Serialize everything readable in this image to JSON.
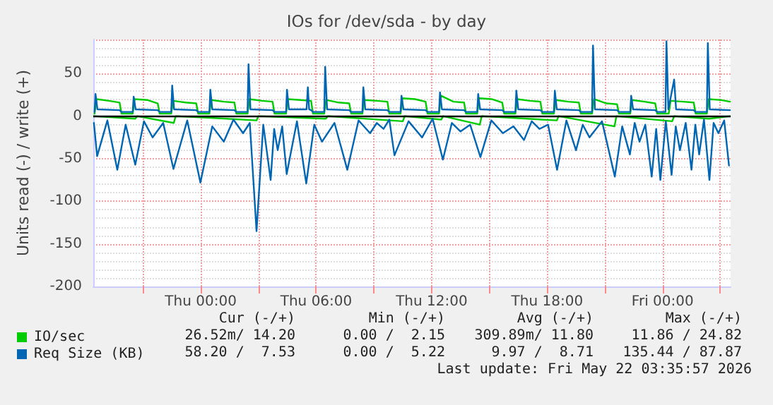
{
  "chart_data": {
    "type": "line",
    "title": "IOs for /dev/sda - by day",
    "ylabel": "Units read (-) / write (+)",
    "xlim": [
      "2026-05-20T18:25",
      "2026-05-22T03:32"
    ],
    "xticks": [
      {
        "value": "2026-05-20T21:00",
        "label": null
      },
      {
        "value": "2026-05-21T00:00",
        "label": "Thu 00:00"
      },
      {
        "value": "2026-05-21T03:00",
        "label": null
      },
      {
        "value": "2026-05-21T06:00",
        "label": "Thu 06:00"
      },
      {
        "value": "2026-05-21T09:00",
        "label": null
      },
      {
        "value": "2026-05-21T12:00",
        "label": "Thu 12:00"
      },
      {
        "value": "2026-05-21T15:00",
        "label": null
      },
      {
        "value": "2026-05-21T18:00",
        "label": "Thu 18:00"
      },
      {
        "value": "2026-05-21T21:00",
        "label": null
      },
      {
        "value": "2026-05-22T00:00",
        "label": "Fri 00:00"
      },
      {
        "value": "2026-05-22T03:00",
        "label": null
      }
    ],
    "ylim": [
      -200,
      90
    ],
    "yticks": [
      -200,
      -150,
      -100,
      -50,
      0,
      50
    ],
    "grid": true,
    "legend": "bottom left",
    "marker": "none",
    "line_style": "solid",
    "ref_lines": [
      {
        "axis": "y",
        "value": 0,
        "color": "#000000"
      }
    ],
    "series": [
      {
        "name": "IO/sec",
        "color": "#00cc00",
        "x": [
          "2026-05-20T18:29",
          "2026-05-20T18:35",
          "2026-05-20T19:14",
          "2026-05-20T19:47",
          "2026-05-20T19:53",
          "2026-05-20T20:28",
          "2026-05-20T20:34",
          "2026-05-20T21:13",
          "2026-05-20T21:46",
          "2026-05-20T21:52",
          "2026-05-20T22:28",
          "2026-05-20T22:34",
          "2026-05-20T23:13",
          "2026-05-20T23:46",
          "2026-05-20T23:52",
          "2026-05-21T00:27",
          "2026-05-21T00:33",
          "2026-05-21T01:12",
          "2026-05-21T01:45",
          "2026-05-21T01:51",
          "2026-05-21T02:26",
          "2026-05-21T02:32",
          "2026-05-21T03:11",
          "2026-05-21T03:44",
          "2026-05-21T03:50",
          "2026-05-21T04:26",
          "2026-05-21T04:32",
          "2026-05-21T05:11",
          "2026-05-21T05:44",
          "2026-05-21T05:50",
          "2026-05-21T06:25",
          "2026-05-21T06:31",
          "2026-05-21T07:10",
          "2026-05-21T07:43",
          "2026-05-21T07:49",
          "2026-05-21T08:24",
          "2026-05-21T08:30",
          "2026-05-21T09:09",
          "2026-05-21T09:42",
          "2026-05-21T09:48",
          "2026-05-21T10:23",
          "2026-05-21T10:29",
          "2026-05-21T11:08",
          "2026-05-21T11:41",
          "2026-05-21T11:47",
          "2026-05-21T12:23",
          "2026-05-21T12:29",
          "2026-05-21T13:08",
          "2026-05-21T13:41",
          "2026-05-21T13:47",
          "2026-05-21T14:22",
          "2026-05-21T14:28",
          "2026-05-21T15:07",
          "2026-05-21T15:40",
          "2026-05-21T15:46",
          "2026-05-21T16:21",
          "2026-05-21T16:27",
          "2026-05-21T17:06",
          "2026-05-21T17:39",
          "2026-05-21T17:45",
          "2026-05-21T18:21",
          "2026-05-21T18:27",
          "2026-05-21T19:06",
          "2026-05-21T19:39",
          "2026-05-21T19:45",
          "2026-05-21T20:20",
          "2026-05-21T20:26",
          "2026-05-21T21:05",
          "2026-05-21T21:38",
          "2026-05-21T21:44",
          "2026-05-21T22:19",
          "2026-05-21T22:25",
          "2026-05-21T23:04",
          "2026-05-21T23:37",
          "2026-05-21T23:43",
          "2026-05-22T00:19",
          "2026-05-22T00:25",
          "2026-05-22T01:04",
          "2026-05-22T01:37",
          "2026-05-22T01:43",
          "2026-05-22T02:18",
          "2026-05-22T02:24",
          "2026-05-22T03:00",
          "2026-05-22T03:30"
        ],
        "values": [
          3,
          20,
          18,
          16,
          3,
          3,
          20,
          19,
          15,
          3,
          3,
          18,
          16,
          15,
          3,
          3,
          19,
          17,
          16,
          3,
          3,
          20,
          18,
          17,
          3,
          3,
          20,
          19,
          18,
          3,
          3,
          19,
          16,
          15,
          3,
          3,
          19,
          18,
          17,
          3,
          3,
          21,
          20,
          17,
          3,
          3,
          24,
          17,
          16,
          3,
          3,
          21,
          20,
          16,
          3,
          3,
          20,
          18,
          17,
          3,
          3,
          19,
          17,
          16,
          3,
          3,
          20,
          15,
          14,
          3,
          3,
          19,
          17,
          15,
          3,
          3,
          18,
          17,
          16,
          3,
          3,
          20,
          19,
          17
        ]
      },
      {
        "color": "#00cc00",
        "x": [
          "2026-05-20T18:27",
          "2026-05-20T20:36",
          "2026-05-20T20:42",
          "2026-05-20T22:36",
          "2026-05-20T22:42",
          "2026-05-21T00:30",
          "2026-05-21T02:54",
          "2026-05-21T03:00",
          "2026-05-21T06:30",
          "2026-05-21T06:36",
          "2026-05-21T10:30",
          "2026-05-21T10:36",
          "2026-05-21T12:30",
          "2026-05-21T12:36",
          "2026-05-21T14:30",
          "2026-05-21T14:36",
          "2026-05-21T18:30",
          "2026-05-21T18:36",
          "2026-05-21T21:30",
          "2026-05-21T21:36",
          "2026-05-22T00:30",
          "2026-05-22T00:36",
          "2026-05-22T02:24",
          "2026-05-22T03:30"
        ],
        "values": [
          0,
          -3,
          0,
          -8,
          0,
          -2,
          -5,
          0,
          -3,
          0,
          -6,
          0,
          -4,
          0,
          -10,
          0,
          -5,
          0,
          -12,
          0,
          -6,
          0,
          -3,
          0
        ]
      },
      {
        "name": "Req Size (KB)",
        "color": "#0066b3",
        "x": [
          "2026-05-20T18:29",
          "2026-05-20T18:32",
          "2026-05-20T18:38",
          "2026-05-20T19:47",
          "2026-05-20T19:53",
          "2026-05-20T20:28",
          "2026-05-20T20:31",
          "2026-05-20T20:37",
          "2026-05-20T21:46",
          "2026-05-20T21:52",
          "2026-05-20T22:28",
          "2026-05-20T22:31",
          "2026-05-20T22:37",
          "2026-05-20T23:46",
          "2026-05-20T23:52",
          "2026-05-21T00:27",
          "2026-05-21T00:30",
          "2026-05-21T00:36",
          "2026-05-21T01:45",
          "2026-05-21T01:51",
          "2026-05-21T02:26",
          "2026-05-21T02:29",
          "2026-05-21T02:35",
          "2026-05-21T03:44",
          "2026-05-21T03:50",
          "2026-05-21T04:26",
          "2026-05-21T04:29",
          "2026-05-21T04:35",
          "2026-05-21T05:30",
          "2026-05-21T05:34",
          "2026-05-21T05:38",
          "2026-05-21T05:44",
          "2026-05-21T05:50",
          "2026-05-21T06:25",
          "2026-05-21T06:28",
          "2026-05-21T06:34",
          "2026-05-21T07:43",
          "2026-05-21T07:49",
          "2026-05-21T08:24",
          "2026-05-21T08:27",
          "2026-05-21T08:33",
          "2026-05-21T09:42",
          "2026-05-21T09:48",
          "2026-05-21T10:23",
          "2026-05-21T10:26",
          "2026-05-21T10:32",
          "2026-05-21T11:41",
          "2026-05-21T11:47",
          "2026-05-21T12:23",
          "2026-05-21T12:26",
          "2026-05-21T12:32",
          "2026-05-21T13:41",
          "2026-05-21T13:47",
          "2026-05-21T14:22",
          "2026-05-21T14:25",
          "2026-05-21T14:31",
          "2026-05-21T15:40",
          "2026-05-21T15:46",
          "2026-05-21T16:21",
          "2026-05-21T16:24",
          "2026-05-21T16:30",
          "2026-05-21T17:39",
          "2026-05-21T17:45",
          "2026-05-21T18:21",
          "2026-05-21T18:24",
          "2026-05-21T18:30",
          "2026-05-21T19:39",
          "2026-05-21T19:45",
          "2026-05-21T20:20",
          "2026-05-21T20:23",
          "2026-05-21T20:29",
          "2026-05-21T21:38",
          "2026-05-21T21:44",
          "2026-05-21T22:19",
          "2026-05-21T22:22",
          "2026-05-21T22:28",
          "2026-05-21T23:37",
          "2026-05-21T23:43",
          "2026-05-22T00:09",
          "2026-05-22T00:12",
          "2026-05-22T00:18",
          "2026-05-22T00:36",
          "2026-05-22T00:42",
          "2026-05-22T01:37",
          "2026-05-22T01:43",
          "2026-05-22T02:18",
          "2026-05-22T02:21",
          "2026-05-22T02:27",
          "2026-05-22T03:30"
        ],
        "values": [
          5,
          26,
          8,
          7,
          5,
          5,
          23,
          8,
          7,
          5,
          5,
          36,
          8,
          7,
          5,
          5,
          31,
          8,
          7,
          5,
          5,
          61,
          8,
          7,
          5,
          5,
          31,
          8,
          8,
          34,
          8,
          7,
          5,
          5,
          58,
          8,
          7,
          5,
          5,
          34,
          8,
          7,
          5,
          5,
          24,
          8,
          7,
          5,
          5,
          28,
          8,
          7,
          5,
          5,
          26,
          8,
          7,
          5,
          5,
          30,
          8,
          7,
          5,
          5,
          30,
          8,
          7,
          5,
          5,
          83,
          8,
          7,
          5,
          5,
          24,
          8,
          7,
          5,
          5,
          88,
          8,
          43,
          8,
          7,
          5,
          5,
          86,
          8,
          7
        ]
      },
      {
        "color": "#0066b3",
        "x": [
          "2026-05-20T18:27",
          "2026-05-20T18:37",
          "2026-05-20T19:09",
          "2026-05-20T19:40",
          "2026-05-20T20:06",
          "2026-05-20T20:36",
          "2026-05-20T21:03",
          "2026-05-20T21:30",
          "2026-05-20T22:03",
          "2026-05-20T22:35",
          "2026-05-20T23:18",
          "2026-05-20T23:59",
          "2026-05-21T00:36",
          "2026-05-21T01:12",
          "2026-05-21T01:42",
          "2026-05-21T02:12",
          "2026-05-21T02:33",
          "2026-05-21T02:54",
          "2026-05-21T03:15",
          "2026-05-21T03:38",
          "2026-05-21T03:49",
          "2026-05-21T04:00",
          "2026-05-21T04:14",
          "2026-05-21T04:28",
          "2026-05-21T05:00",
          "2026-05-21T05:29",
          "2026-05-21T05:54",
          "2026-05-21T06:18",
          "2026-05-21T06:57",
          "2026-05-21T07:37",
          "2026-05-21T08:12",
          "2026-05-21T08:48",
          "2026-05-21T09:09",
          "2026-05-21T09:30",
          "2026-05-21T09:48",
          "2026-05-21T10:04",
          "2026-05-21T10:48",
          "2026-05-21T11:30",
          "2026-05-21T12:03",
          "2026-05-21T12:35",
          "2026-05-21T13:03",
          "2026-05-21T13:30",
          "2026-05-21T14:00",
          "2026-05-21T14:32",
          "2026-05-21T15:06",
          "2026-05-21T15:42",
          "2026-05-21T16:15",
          "2026-05-21T16:48",
          "2026-05-21T17:12",
          "2026-05-21T17:36",
          "2026-05-21T18:03",
          "2026-05-21T18:31",
          "2026-05-21T19:00",
          "2026-05-21T19:30",
          "2026-05-21T19:51",
          "2026-05-21T20:12",
          "2026-05-21T20:51",
          "2026-05-21T21:31",
          "2026-05-21T21:54",
          "2026-05-21T22:18",
          "2026-05-21T22:33",
          "2026-05-21T22:48",
          "2026-05-21T23:06",
          "2026-05-21T23:26",
          "2026-05-21T23:40",
          "2026-05-21T23:53",
          "2026-05-22T00:10",
          "2026-05-22T00:28",
          "2026-05-22T00:41",
          "2026-05-22T00:54",
          "2026-05-22T01:12",
          "2026-05-22T01:30",
          "2026-05-22T01:42",
          "2026-05-22T01:54",
          "2026-05-22T02:09",
          "2026-05-22T02:26",
          "2026-05-22T02:39",
          "2026-05-22T02:54",
          "2026-05-22T03:12",
          "2026-05-22T03:27"
        ],
        "values": [
          -8,
          -47,
          -5,
          -63,
          -10,
          -57,
          -6,
          -25,
          -8,
          -62,
          -5,
          -78,
          -12,
          -30,
          -4,
          -20,
          -8,
          -135,
          -10,
          -75,
          -15,
          -40,
          -12,
          -68,
          -6,
          -79,
          -10,
          -30,
          -8,
          -63,
          -5,
          -20,
          -8,
          -15,
          -4,
          -46,
          -6,
          -25,
          -3,
          -51,
          -8,
          -18,
          -10,
          -48,
          -5,
          -20,
          -12,
          -28,
          -6,
          -15,
          -10,
          -63,
          -5,
          -40,
          -10,
          -25,
          -6,
          -71,
          -12,
          -45,
          -8,
          -30,
          -10,
          -71,
          -15,
          -75,
          -6,
          -69,
          -12,
          -40,
          -8,
          -63,
          -10,
          -45,
          -4,
          -75,
          -8,
          -20,
          -5,
          -58
        ]
      }
    ],
    "annotations": [
      "Cur (-/+)",
      "Min (-/+)",
      "Avg (-/+)",
      "Max (-/+)",
      "26.52m/ 14.20",
      "0.00 /  2.15",
      "309.89m/ 11.80",
      "11.86 / 24.82",
      "58.20 /  7.53",
      "0.00 /  5.22",
      "9.97 /  8.71",
      "135.44 / 87.87",
      "Last update: Fri May 22 03:35:57 2026"
    ]
  }
}
